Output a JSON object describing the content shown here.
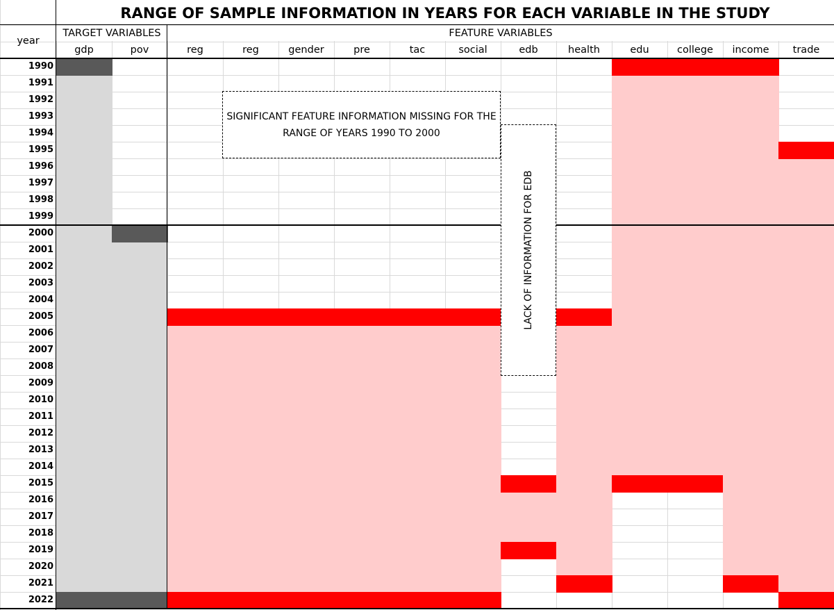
{
  "title": "RANGE OF SAMPLE INFORMATION IN YEARS FOR EACH VARIABLE IN THE STUDY",
  "header": {
    "year_label": "year",
    "target_group": "TARGET VARIABLES",
    "feature_group": "FEATURE VARIABLES",
    "columns": [
      "gdp",
      "pov",
      "reg",
      "reg",
      "gender",
      "pre",
      "tac",
      "social",
      "edb",
      "health",
      "edu",
      "college",
      "income",
      "trade"
    ]
  },
  "years": [
    "1990",
    "1991",
    "1992",
    "1993",
    "1994",
    "1995",
    "1996",
    "1997",
    "1998",
    "1999",
    "2000",
    "2001",
    "2002",
    "2003",
    "2004",
    "2005",
    "2006",
    "2007",
    "2008",
    "2009",
    "2010",
    "2011",
    "2012",
    "2013",
    "2014",
    "2015",
    "2016",
    "2017",
    "2018",
    "2019",
    "2020",
    "2021",
    "2022"
  ],
  "annotations": {
    "feature_missing": "SIGNIFICANT FEATURE INFORMATION MISSING  FOR THE RANGE  OF YEARS 1990 TO 2000",
    "edb_missing": "LACK OF INFORMATION FOR EDB"
  },
  "colors": {
    "target_period": "#d9d9d9",
    "target_endpoint": "#595959",
    "feature_period": "#ffcccc",
    "feature_endpoint": "#ff0000",
    "gridline": "#d9d9d9"
  },
  "coverage": [
    {
      "column": "gdp",
      "from": "1990",
      "to": "2022",
      "kind": "target"
    },
    {
      "column": "pov",
      "from": "2000",
      "to": "2022",
      "kind": "target"
    },
    {
      "column": "reg",
      "from": "2005",
      "to": "2022",
      "kind": "feature"
    },
    {
      "column": "reg",
      "from": "2005",
      "to": "2022",
      "kind": "feature"
    },
    {
      "column": "gender",
      "from": "2005",
      "to": "2022",
      "kind": "feature"
    },
    {
      "column": "pre",
      "from": "2005",
      "to": "2022",
      "kind": "feature"
    },
    {
      "column": "tac",
      "from": "2005",
      "to": "2022",
      "kind": "feature"
    },
    {
      "column": "social",
      "from": "2005",
      "to": "2022",
      "kind": "feature"
    },
    {
      "column": "edb",
      "from": "2015",
      "to": "2019",
      "kind": "feature"
    },
    {
      "column": "health",
      "from": "2005",
      "to": "2021",
      "kind": "feature"
    },
    {
      "column": "edu",
      "from": "1990",
      "to": "2015",
      "kind": "feature"
    },
    {
      "column": "college",
      "from": "1990",
      "to": "2015",
      "kind": "feature"
    },
    {
      "column": "income",
      "from": "1990",
      "to": "2021",
      "kind": "feature"
    },
    {
      "column": "trade",
      "from": "1995",
      "to": "2022",
      "kind": "feature"
    }
  ]
}
